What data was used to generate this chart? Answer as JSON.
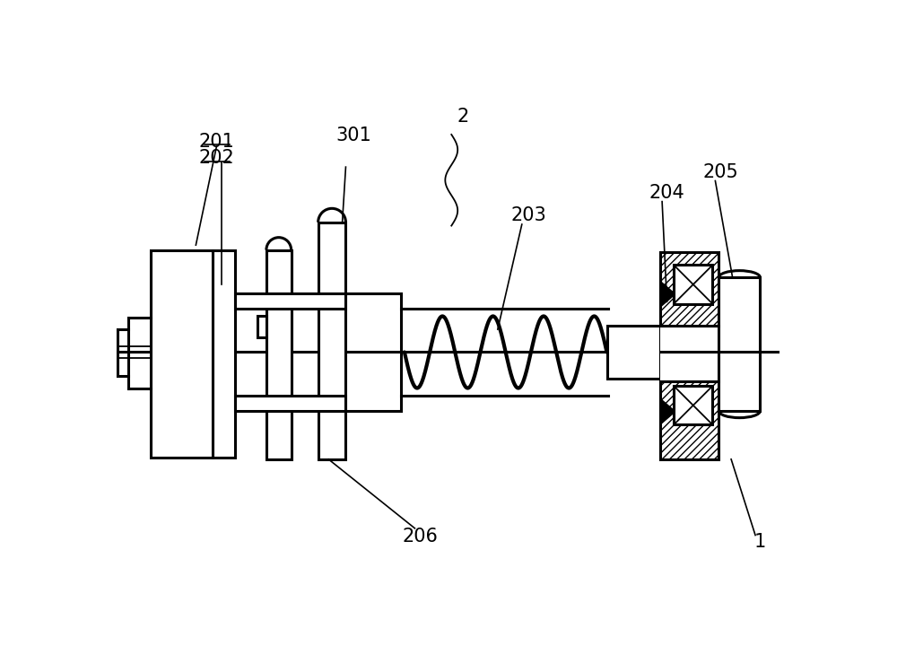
{
  "bg_color": "#ffffff",
  "lc": "#000000",
  "lw": 2.2,
  "lwt": 1.3,
  "fs": 15,
  "figsize": [
    10.0,
    7.49
  ],
  "dpi": 100
}
